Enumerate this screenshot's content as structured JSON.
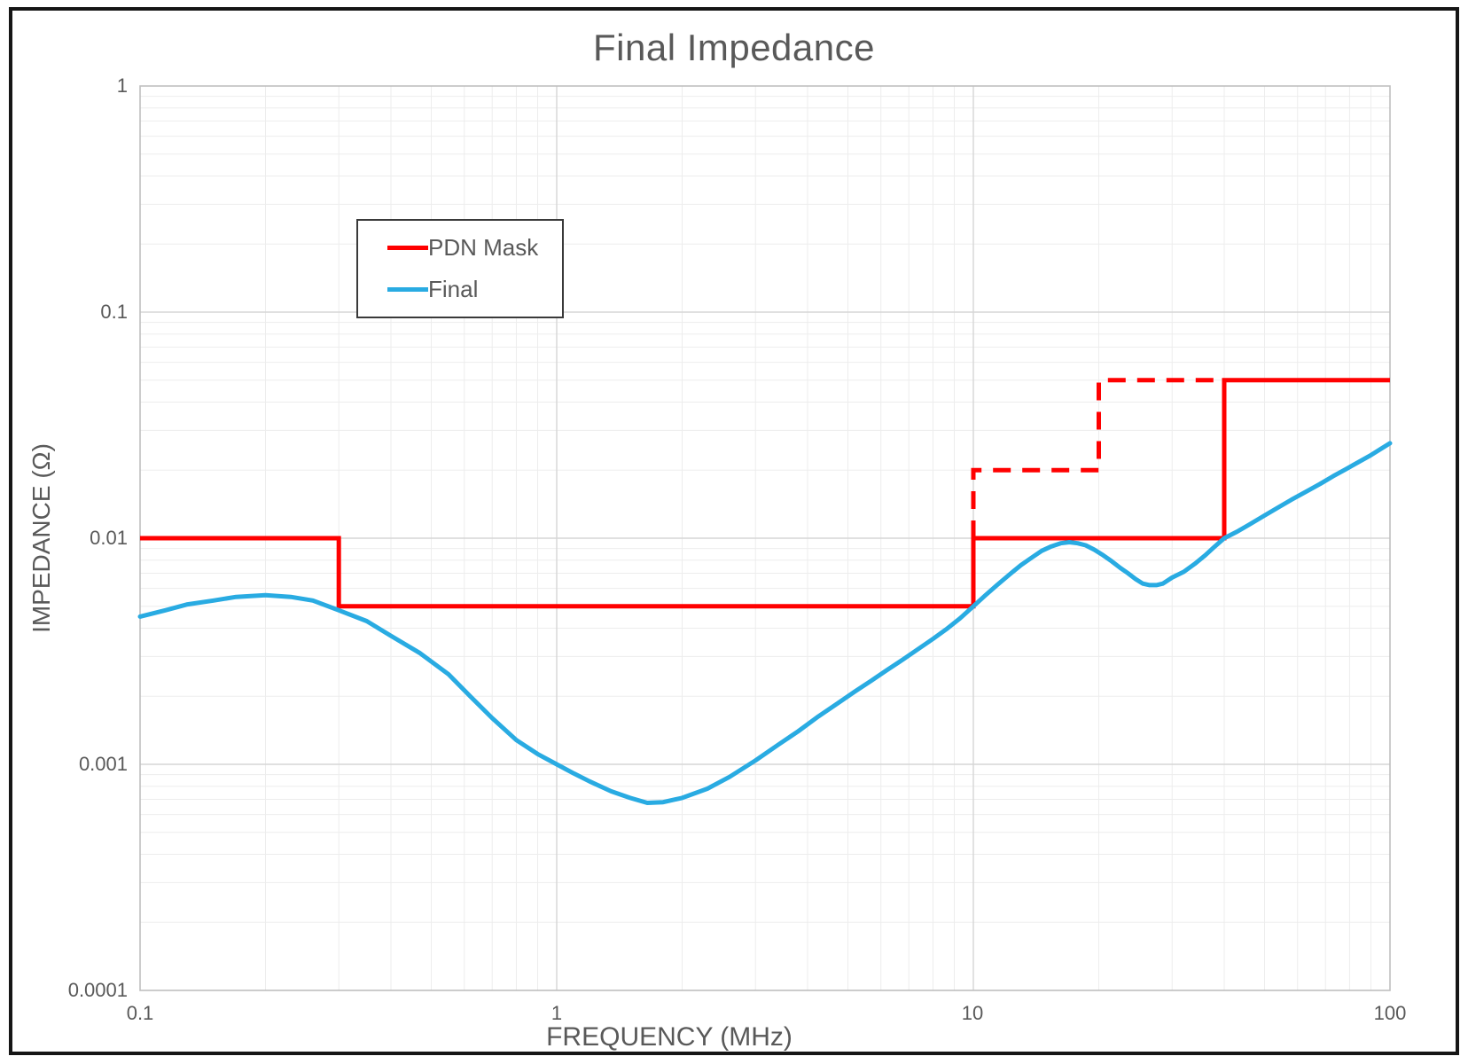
{
  "chart_data": {
    "type": "line",
    "title": "Final Impedance",
    "xlabel": "FREQUENCY (MHz)",
    "ylabel": "IMPEDANCE (Ω)",
    "x_scale": "log",
    "y_scale": "log",
    "xlim": [
      0.1,
      100
    ],
    "ylim": [
      0.0001,
      1
    ],
    "x_ticks": [
      "0.1",
      "1",
      "10",
      "100"
    ],
    "y_ticks": [
      "1",
      "0.1",
      "0.01",
      "0.001",
      "0.0001"
    ],
    "grid": {
      "minor_color": "#ededed",
      "major_color": "#d6d6d6",
      "border_color": "#bfbfbf"
    },
    "text_color": "#595959",
    "legend_position": "upper-left-inside",
    "series": [
      {
        "name": "PDN Mask",
        "color": "#ff0000",
        "style": "step",
        "solid_points": [
          [
            0.1,
            0.01
          ],
          [
            0.3,
            0.01
          ],
          [
            0.3,
            0.005
          ],
          [
            10,
            0.005
          ],
          [
            10,
            0.01
          ],
          [
            40,
            0.01
          ],
          [
            40,
            0.05
          ],
          [
            100,
            0.05
          ]
        ],
        "dashed_points": [
          [
            10,
            0.01
          ],
          [
            10,
            0.02
          ],
          [
            20,
            0.02
          ],
          [
            20,
            0.05
          ],
          [
            40,
            0.05
          ]
        ]
      },
      {
        "name": "Final",
        "color": "#29abe2",
        "style": "smooth",
        "points": [
          [
            0.1,
            0.0045
          ],
          [
            0.115,
            0.0048
          ],
          [
            0.13,
            0.0051
          ],
          [
            0.15,
            0.0053
          ],
          [
            0.17,
            0.0055
          ],
          [
            0.2,
            0.0056
          ],
          [
            0.23,
            0.0055
          ],
          [
            0.26,
            0.0053
          ],
          [
            0.3,
            0.0048
          ],
          [
            0.35,
            0.0043
          ],
          [
            0.4,
            0.0037
          ],
          [
            0.47,
            0.0031
          ],
          [
            0.55,
            0.0025
          ],
          [
            0.62,
            0.002
          ],
          [
            0.7,
            0.0016
          ],
          [
            0.8,
            0.00128
          ],
          [
            0.9,
            0.00111
          ],
          [
            1.0,
            0.001
          ],
          [
            1.1,
            0.00091
          ],
          [
            1.2,
            0.00084
          ],
          [
            1.35,
            0.00076
          ],
          [
            1.5,
            0.00071
          ],
          [
            1.65,
            0.000675
          ],
          [
            1.8,
            0.00068
          ],
          [
            2.0,
            0.00071
          ],
          [
            2.3,
            0.00078
          ],
          [
            2.6,
            0.00088
          ],
          [
            3.0,
            0.00104
          ],
          [
            3.4,
            0.00122
          ],
          [
            3.8,
            0.0014
          ],
          [
            4.25,
            0.00163
          ],
          [
            4.7,
            0.00185
          ],
          [
            5.2,
            0.0021
          ],
          [
            5.7,
            0.00235
          ],
          [
            6.2,
            0.00261
          ],
          [
            6.8,
            0.00292
          ],
          [
            7.4,
            0.00325
          ],
          [
            8.0,
            0.00359
          ],
          [
            8.6,
            0.00395
          ],
          [
            9.3,
            0.00443
          ],
          [
            10,
            0.005
          ],
          [
            10.7,
            0.0056
          ],
          [
            11.4,
            0.0062
          ],
          [
            12.2,
            0.0069
          ],
          [
            13,
            0.0076
          ],
          [
            13.8,
            0.0082
          ],
          [
            14.6,
            0.0088
          ],
          [
            15.4,
            0.0092
          ],
          [
            16.2,
            0.0095
          ],
          [
            17,
            0.0096
          ],
          [
            17.8,
            0.0095
          ],
          [
            18.6,
            0.0093
          ],
          [
            19.5,
            0.0089
          ],
          [
            20.5,
            0.0084
          ],
          [
            21.5,
            0.0079
          ],
          [
            22.5,
            0.0074
          ],
          [
            23.5,
            0.007
          ],
          [
            24.5,
            0.0066
          ],
          [
            25.5,
            0.0063
          ],
          [
            26.5,
            0.0062
          ],
          [
            27.5,
            0.0062
          ],
          [
            28.5,
            0.0063
          ],
          [
            30,
            0.0067
          ],
          [
            32,
            0.0071
          ],
          [
            34,
            0.0077
          ],
          [
            36,
            0.0084
          ],
          [
            38,
            0.0092
          ],
          [
            40,
            0.01
          ],
          [
            43,
            0.0107
          ],
          [
            46,
            0.0115
          ],
          [
            50,
            0.0126
          ],
          [
            54,
            0.0137
          ],
          [
            58,
            0.0148
          ],
          [
            63,
            0.0161
          ],
          [
            68,
            0.0174
          ],
          [
            73,
            0.0188
          ],
          [
            78,
            0.0201
          ],
          [
            84,
            0.0217
          ],
          [
            90,
            0.0233
          ],
          [
            95,
            0.0248
          ],
          [
            100,
            0.0263
          ]
        ]
      }
    ]
  },
  "legend": {
    "items": [
      {
        "label": "PDN Mask"
      },
      {
        "label": "Final"
      }
    ]
  }
}
